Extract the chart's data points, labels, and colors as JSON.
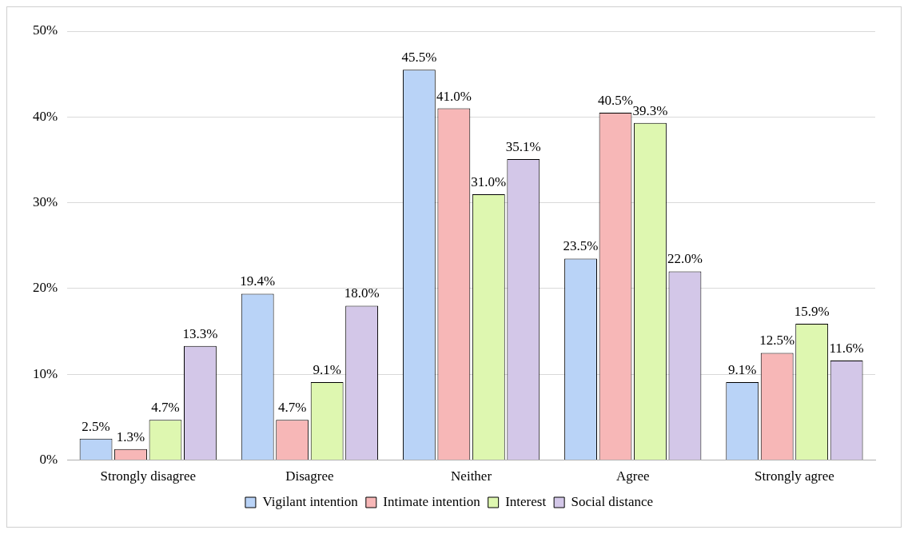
{
  "chart_data": {
    "type": "bar",
    "categories": [
      "Strongly disagree",
      "Disagree",
      "Neither",
      "Agree",
      "Strongly agree"
    ],
    "series": [
      {
        "name": "Vigilant intention",
        "color": "#b9d3f7",
        "values": [
          2.5,
          19.4,
          45.5,
          23.5,
          9.1
        ]
      },
      {
        "name": "Intimate intention",
        "color": "#f7b7b7",
        "values": [
          1.3,
          4.7,
          41.0,
          40.5,
          12.5
        ]
      },
      {
        "name": "Interest",
        "color": "#def7b0",
        "values": [
          4.7,
          9.1,
          31.0,
          39.3,
          15.9
        ]
      },
      {
        "name": "Social distance",
        "color": "#d3c7e8",
        "values": [
          13.3,
          18.0,
          35.1,
          22.0,
          11.6
        ]
      }
    ],
    "ylim": [
      0,
      50
    ],
    "yticks": [
      {
        "value": 0,
        "label": "0%"
      },
      {
        "value": 10,
        "label": "10%"
      },
      {
        "value": 20,
        "label": "20%"
      },
      {
        "value": 30,
        "label": "30%"
      },
      {
        "value": 40,
        "label": "40%"
      },
      {
        "value": 50,
        "label": "50%"
      }
    ],
    "grid": "y",
    "legend": "bottom",
    "value_labels": [
      [
        "2.5%",
        "19.4%",
        "45.5%",
        "23.5%",
        "9.1%"
      ],
      [
        "1.3%",
        "4.7%",
        "41.0%",
        "40.5%",
        "12.5%"
      ],
      [
        "4.7%",
        "9.1%",
        "31.0%",
        "39.3%",
        "15.9%"
      ],
      [
        "13.3%",
        "18.0%",
        "35.1%",
        "22.0%",
        "11.6%"
      ]
    ]
  }
}
